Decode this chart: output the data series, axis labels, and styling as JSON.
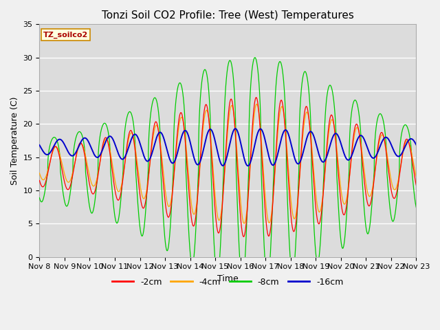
{
  "title": "Tonzi Soil CO2 Profile: Tree (West) Temperatures",
  "xlabel": "Time",
  "ylabel": "Soil Temperature (C)",
  "ylim": [
    0,
    35
  ],
  "site_label": "TZ_soilco2",
  "legend_labels": [
    "-2cm",
    "-4cm",
    "-8cm",
    "-16cm"
  ],
  "legend_colors": [
    "#ff0000",
    "#ffa500",
    "#00cc00",
    "#0000cc"
  ],
  "xtick_labels": [
    "Nov 8",
    "Nov 9",
    "Nov 10",
    "Nov 11",
    "Nov 12",
    "Nov 13",
    "Nov 14",
    "Nov 15",
    "Nov 16",
    "Nov 17",
    "Nov 18",
    "Nov 19",
    "Nov 20",
    "Nov 21",
    "Nov 22",
    "Nov 23"
  ],
  "background_color": "#dcdcdc",
  "grid_color": "#ffffff",
  "title_fontsize": 11,
  "axis_label_fontsize": 9,
  "tick_fontsize": 8
}
